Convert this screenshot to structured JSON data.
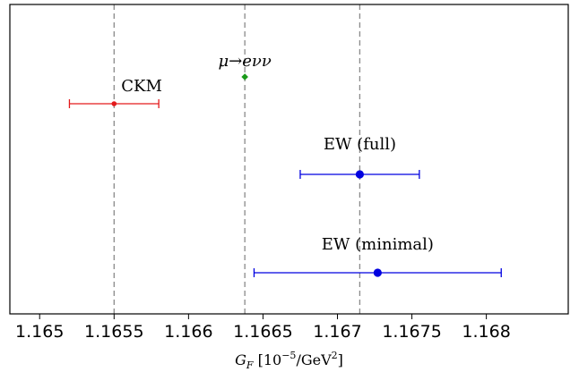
{
  "chart_data": {
    "type": "scatter",
    "title": "",
    "xlabel": {
      "base": "G",
      "sub": "F",
      "unit_prefix": " [10",
      "unit_exp1": "−5",
      "unit_mid": "/GeV",
      "unit_exp2": "2",
      "unit_suffix": "]"
    },
    "ylabel": "",
    "xlim": [
      1.1648,
      1.16855
    ],
    "x_ticks": [
      1.165,
      1.1655,
      1.166,
      1.1665,
      1.167,
      1.1675,
      1.168
    ],
    "x_tick_labels": [
      "1.165",
      "1.1655",
      "1.166",
      "1.1665",
      "1.167",
      "1.1675",
      "1.168"
    ],
    "y_ticks": [],
    "grid": false,
    "reference_lines": [
      1.1655,
      1.166378,
      1.16715
    ],
    "series": [
      {
        "name": "CKM",
        "x": 1.1655,
        "xerr_low": 0.0003,
        "xerr_high": 0.0003,
        "color": "#e31a1c",
        "marker": "dot-small",
        "label": "CKM",
        "row": 0
      },
      {
        "name": "μ→eνν",
        "x": 1.166378,
        "xerr_low": 0.0,
        "xerr_high": 0.0,
        "color": "#1a9a1a",
        "marker": "diamond",
        "label_base": "μ→e",
        "label_tail": "νν",
        "row": 1
      },
      {
        "name": "EW (full)",
        "x": 1.16715,
        "xerr_low": 0.0004,
        "xerr_high": 0.0004,
        "color": "#0000e0",
        "marker": "dot",
        "label": "EW (full)",
        "row": 2
      },
      {
        "name": "EW (minimal)",
        "x": 1.16727,
        "xerr_low": 0.00083,
        "xerr_high": 0.00083,
        "color": "#0000e0",
        "marker": "dot",
        "label": "EW (minimal)",
        "row": 3
      }
    ]
  }
}
